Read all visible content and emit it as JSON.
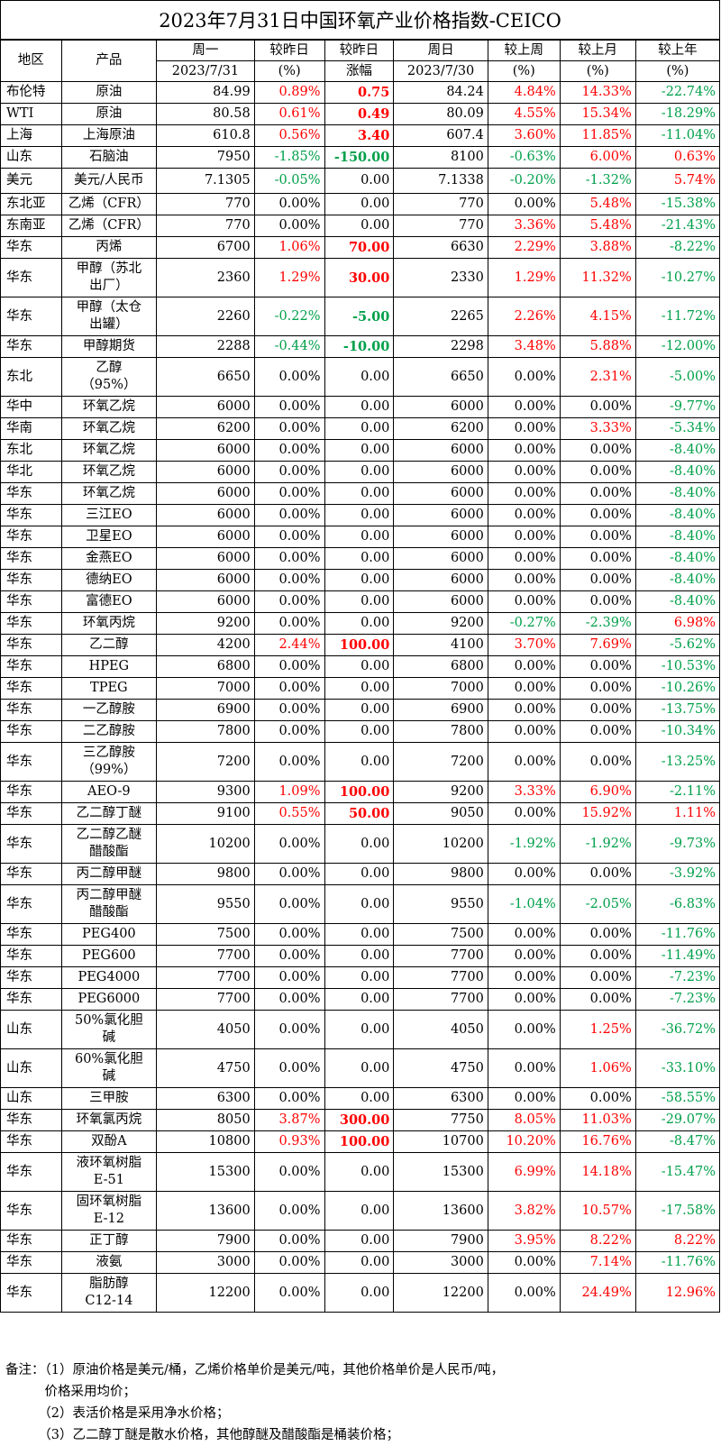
{
  "title": "2023年7月31日中国环氧产业价格指数-CEICO",
  "header": {
    "region": "地区",
    "product": "产品",
    "mon": "周一",
    "mon_date": "2023/7/31",
    "chg_pct": "较昨日",
    "chg_pct_unit": "(%)",
    "chg_amt": "较昨日",
    "chg_amt_unit": "涨幅",
    "sun": "周日",
    "sun_date": "2023/7/30",
    "wk": "较上周",
    "wk_unit": "(%)",
    "mo": "较上月",
    "mo_unit": "(%)",
    "yr": "较上年",
    "yr_unit": "(%)"
  },
  "colors": {
    "up": "#ff0000",
    "down": "#00a04a"
  },
  "rows": [
    {
      "r": "布伦特",
      "p": [
        "原油"
      ],
      "mon": "84.99",
      "d": "0.89%",
      "a": "0.75",
      "sun": "84.24",
      "w": "4.84%",
      "m": "14.33%",
      "y": "-22.74%",
      "h": 24
    },
    {
      "r": "WTI",
      "p": [
        "原油"
      ],
      "mon": "80.58",
      "d": "0.61%",
      "a": "0.49",
      "sun": "80.09",
      "w": "4.55%",
      "m": "15.34%",
      "y": "-18.29%",
      "h": 24
    },
    {
      "r": "上海",
      "p": [
        "上海原油"
      ],
      "mon": "610.8",
      "d": "0.56%",
      "a": "3.40",
      "sun": "607.4",
      "w": "3.60%",
      "m": "11.85%",
      "y": "-11.04%",
      "h": 24
    },
    {
      "r": "山东",
      "p": [
        "石脑油"
      ],
      "mon": "7950",
      "d": "-1.85%",
      "a": "-150.00",
      "sun": "8100",
      "w": "-0.63%",
      "m": "6.00%",
      "y": "0.63%",
      "h": 24
    },
    {
      "r": "美元",
      "p": [
        "美元/人民币"
      ],
      "mon": "7.1305",
      "d": "-0.05%",
      "a": "0.00",
      "sun": "7.1338",
      "w": "-0.20%",
      "m": "-1.32%",
      "y": "5.74%",
      "h": 28
    },
    {
      "r": "东北亚",
      "p": [
        "乙烯（CFR）"
      ],
      "mon": "770",
      "d": "0.00%",
      "a": "0.00",
      "sun": "770",
      "w": "0.00%",
      "m": "5.48%",
      "y": "-15.38%",
      "h": 24
    },
    {
      "r": "东南亚",
      "p": [
        "乙烯（CFR）"
      ],
      "mon": "770",
      "d": "0.00%",
      "a": "0.00",
      "sun": "770",
      "w": "3.36%",
      "m": "5.48%",
      "y": "-21.43%",
      "h": 24
    },
    {
      "r": "华东",
      "p": [
        "丙烯"
      ],
      "mon": "6700",
      "d": "1.06%",
      "a": "70.00",
      "sun": "6630",
      "w": "2.29%",
      "m": "3.88%",
      "y": "-8.22%",
      "h": 24
    },
    {
      "r": "华东",
      "p": [
        "甲醇（苏北",
        "出厂）"
      ],
      "mon": "2360",
      "d": "1.29%",
      "a": "30.00",
      "sun": "2330",
      "w": "1.29%",
      "m": "11.32%",
      "y": "-10.27%",
      "h": 43
    },
    {
      "r": "华东",
      "p": [
        "甲醇（太仓",
        "出罐）"
      ],
      "mon": "2260",
      "d": "-0.22%",
      "a": "-5.00",
      "sun": "2265",
      "w": "2.26%",
      "m": "4.15%",
      "y": "-11.72%",
      "h": 43
    },
    {
      "r": "华东",
      "p": [
        "甲醇期货"
      ],
      "mon": "2288",
      "d": "-0.44%",
      "a": "-10.00",
      "sun": "2298",
      "w": "3.48%",
      "m": "5.88%",
      "y": "-12.00%",
      "h": 24
    },
    {
      "r": "东北",
      "p": [
        "乙醇",
        "（95%）"
      ],
      "mon": "6650",
      "d": "0.00%",
      "a": "0.00",
      "sun": "6650",
      "w": "0.00%",
      "m": "2.31%",
      "y": "-5.00%",
      "h": 43
    },
    {
      "r": "华中",
      "p": [
        "环氧乙烷"
      ],
      "mon": "6000",
      "d": "0.00%",
      "a": "0.00",
      "sun": "6000",
      "w": "0.00%",
      "m": "0.00%",
      "y": "-9.77%",
      "h": 24
    },
    {
      "r": "华南",
      "p": [
        "环氧乙烷"
      ],
      "mon": "6200",
      "d": "0.00%",
      "a": "0.00",
      "sun": "6200",
      "w": "0.00%",
      "m": "3.33%",
      "y": "-5.34%",
      "h": 24
    },
    {
      "r": "东北",
      "p": [
        "环氧乙烷"
      ],
      "mon": "6000",
      "d": "0.00%",
      "a": "0.00",
      "sun": "6000",
      "w": "0.00%",
      "m": "0.00%",
      "y": "-8.40%",
      "h": 24
    },
    {
      "r": "华北",
      "p": [
        "环氧乙烷"
      ],
      "mon": "6000",
      "d": "0.00%",
      "a": "0.00",
      "sun": "6000",
      "w": "0.00%",
      "m": "0.00%",
      "y": "-8.40%",
      "h": 24
    },
    {
      "r": "华东",
      "p": [
        "环氧乙烷"
      ],
      "mon": "6000",
      "d": "0.00%",
      "a": "0.00",
      "sun": "6000",
      "w": "0.00%",
      "m": "0.00%",
      "y": "-8.40%",
      "h": 24
    },
    {
      "r": "华东",
      "p": [
        "三江EO"
      ],
      "mon": "6000",
      "d": "0.00%",
      "a": "0.00",
      "sun": "6000",
      "w": "0.00%",
      "m": "0.00%",
      "y": "-8.40%",
      "h": 24
    },
    {
      "r": "华东",
      "p": [
        "卫星EO"
      ],
      "mon": "6000",
      "d": "0.00%",
      "a": "0.00",
      "sun": "6000",
      "w": "0.00%",
      "m": "0.00%",
      "y": "-8.40%",
      "h": 24
    },
    {
      "r": "华东",
      "p": [
        "金燕EO"
      ],
      "mon": "6000",
      "d": "0.00%",
      "a": "0.00",
      "sun": "6000",
      "w": "0.00%",
      "m": "0.00%",
      "y": "-8.40%",
      "h": 24
    },
    {
      "r": "华东",
      "p": [
        "德纳EO"
      ],
      "mon": "6000",
      "d": "0.00%",
      "a": "0.00",
      "sun": "6000",
      "w": "0.00%",
      "m": "0.00%",
      "y": "-8.40%",
      "h": 24
    },
    {
      "r": "华东",
      "p": [
        "富德EO"
      ],
      "mon": "6000",
      "d": "0.00%",
      "a": "0.00",
      "sun": "6000",
      "w": "0.00%",
      "m": "0.00%",
      "y": "-8.40%",
      "h": 24
    },
    {
      "r": "华东",
      "p": [
        "环氧丙烷"
      ],
      "mon": "9200",
      "d": "0.00%",
      "a": "0.00",
      "sun": "9200",
      "w": "-0.27%",
      "m": "-2.39%",
      "y": "6.98%",
      "h": 24
    },
    {
      "r": "华东",
      "p": [
        "乙二醇"
      ],
      "mon": "4200",
      "d": "2.44%",
      "a": "100.00",
      "sun": "4100",
      "w": "3.70%",
      "m": "7.69%",
      "y": "-5.62%",
      "h": 24
    },
    {
      "r": "华东",
      "p": [
        "HPEG"
      ],
      "mon": "6800",
      "d": "0.00%",
      "a": "0.00",
      "sun": "6800",
      "w": "0.00%",
      "m": "0.00%",
      "y": "-10.53%",
      "h": 24
    },
    {
      "r": "华东",
      "p": [
        "TPEG"
      ],
      "mon": "7000",
      "d": "0.00%",
      "a": "0.00",
      "sun": "7000",
      "w": "0.00%",
      "m": "0.00%",
      "y": "-10.26%",
      "h": 24
    },
    {
      "r": "华东",
      "p": [
        "一乙醇胺"
      ],
      "mon": "6900",
      "d": "0.00%",
      "a": "0.00",
      "sun": "6900",
      "w": "0.00%",
      "m": "0.00%",
      "y": "-13.75%",
      "h": 24
    },
    {
      "r": "华东",
      "p": [
        "二乙醇胺"
      ],
      "mon": "7800",
      "d": "0.00%",
      "a": "0.00",
      "sun": "7800",
      "w": "0.00%",
      "m": "0.00%",
      "y": "-10.34%",
      "h": 24
    },
    {
      "r": "华东",
      "p": [
        "三乙醇胺",
        "（99%）"
      ],
      "mon": "7200",
      "d": "0.00%",
      "a": "0.00",
      "sun": "7200",
      "w": "0.00%",
      "m": "0.00%",
      "y": "-13.25%",
      "h": 43
    },
    {
      "r": "华东",
      "p": [
        "AEO-9"
      ],
      "mon": "9300",
      "d": "1.09%",
      "a": "100.00",
      "sun": "9200",
      "w": "3.33%",
      "m": "6.90%",
      "y": "-2.11%",
      "h": 24
    },
    {
      "r": "华东",
      "p": [
        "乙二醇丁醚"
      ],
      "mon": "9100",
      "d": "0.55%",
      "a": "50.00",
      "sun": "9050",
      "w": "0.00%",
      "m": "15.92%",
      "y": "1.11%",
      "h": 24
    },
    {
      "r": "华东",
      "p": [
        "乙二醇乙醚",
        "醋酸酯"
      ],
      "mon": "10200",
      "d": "0.00%",
      "a": "0.00",
      "sun": "10200",
      "w": "-1.92%",
      "m": "-1.92%",
      "y": "-9.73%",
      "h": 43
    },
    {
      "r": "华东",
      "p": [
        "丙二醇甲醚"
      ],
      "mon": "9800",
      "d": "0.00%",
      "a": "0.00",
      "sun": "9800",
      "w": "0.00%",
      "m": "0.00%",
      "y": "-3.92%",
      "h": 24
    },
    {
      "r": "华东",
      "p": [
        "丙二醇甲醚",
        "醋酸酯"
      ],
      "mon": "9550",
      "d": "0.00%",
      "a": "0.00",
      "sun": "9550",
      "w": "-1.04%",
      "m": "-2.05%",
      "y": "-6.83%",
      "h": 43
    },
    {
      "r": "华东",
      "p": [
        "PEG400"
      ],
      "mon": "7500",
      "d": "0.00%",
      "a": "0.00",
      "sun": "7500",
      "w": "0.00%",
      "m": "0.00%",
      "y": "-11.76%",
      "h": 24
    },
    {
      "r": "华东",
      "p": [
        "PEG600"
      ],
      "mon": "7700",
      "d": "0.00%",
      "a": "0.00",
      "sun": "7700",
      "w": "0.00%",
      "m": "0.00%",
      "y": "-11.49%",
      "h": 24
    },
    {
      "r": "华东",
      "p": [
        "PEG4000"
      ],
      "mon": "7700",
      "d": "0.00%",
      "a": "0.00",
      "sun": "7700",
      "w": "0.00%",
      "m": "0.00%",
      "y": "-7.23%",
      "h": 24
    },
    {
      "r": "华东",
      "p": [
        "PEG6000"
      ],
      "mon": "7700",
      "d": "0.00%",
      "a": "0.00",
      "sun": "7700",
      "w": "0.00%",
      "m": "0.00%",
      "y": "-7.23%",
      "h": 24
    },
    {
      "r": "山东",
      "p": [
        "50%氯化胆",
        "碱"
      ],
      "mon": "4050",
      "d": "0.00%",
      "a": "0.00",
      "sun": "4050",
      "w": "0.00%",
      "m": "1.25%",
      "y": "-36.72%",
      "h": 43
    },
    {
      "r": "山东",
      "p": [
        "60%氯化胆",
        "碱"
      ],
      "mon": "4750",
      "d": "0.00%",
      "a": "0.00",
      "sun": "4750",
      "w": "0.00%",
      "m": "1.06%",
      "y": "-33.10%",
      "h": 43
    },
    {
      "r": "山东",
      "p": [
        "三甲胺"
      ],
      "mon": "6300",
      "d": "0.00%",
      "a": "0.00",
      "sun": "6300",
      "w": "0.00%",
      "m": "0.00%",
      "y": "-58.55%",
      "h": 24
    },
    {
      "r": "华东",
      "p": [
        "环氧氯丙烷"
      ],
      "mon": "8050",
      "d": "3.87%",
      "a": "300.00",
      "sun": "7750",
      "w": "8.05%",
      "m": "11.03%",
      "y": "-29.07%",
      "h": 24
    },
    {
      "r": "华东",
      "p": [
        "双酚A"
      ],
      "mon": "10800",
      "d": "0.93%",
      "a": "100.00",
      "sun": "10700",
      "w": "10.20%",
      "m": "16.76%",
      "y": "-8.47%",
      "h": 24
    },
    {
      "r": "华东",
      "p": [
        "液环氧树脂",
        "E-51"
      ],
      "mon": "15300",
      "d": "0.00%",
      "a": "0.00",
      "sun": "15300",
      "w": "6.99%",
      "m": "14.18%",
      "y": "-15.47%",
      "h": 43
    },
    {
      "r": "华东",
      "p": [
        "固环氧树脂",
        "E-12"
      ],
      "mon": "13600",
      "d": "0.00%",
      "a": "0.00",
      "sun": "13600",
      "w": "3.82%",
      "m": "10.57%",
      "y": "-17.58%",
      "h": 43
    },
    {
      "r": "华东",
      "p": [
        "正丁醇"
      ],
      "mon": "7900",
      "d": "0.00%",
      "a": "0.00",
      "sun": "7900",
      "w": "3.95%",
      "m": "8.22%",
      "y": "8.22%",
      "h": 24
    },
    {
      "r": "华东",
      "p": [
        "液氨"
      ],
      "mon": "3000",
      "d": "0.00%",
      "a": "0.00",
      "sun": "3000",
      "w": "0.00%",
      "m": "7.14%",
      "y": "-11.76%",
      "h": 24
    },
    {
      "r": "华东",
      "p": [
        "脂肪醇",
        "C12-14"
      ],
      "mon": "12200",
      "d": "0.00%",
      "a": "0.00",
      "sun": "12200",
      "w": "0.00%",
      "m": "24.49%",
      "y": "12.96%",
      "h": 43
    }
  ],
  "notes": [
    "备注：（1）原油价格是美元/桶，乙烯价格单价是美元/吨，其他价格单价是人民币/吨，",
    "　　　价格采用均价；",
    "　　　（2）表活价格是采用净水价格；",
    "　　　（3）乙二醇丁醚是散水价格，其他醇醚及醋酸酯是桶装价格；"
  ]
}
